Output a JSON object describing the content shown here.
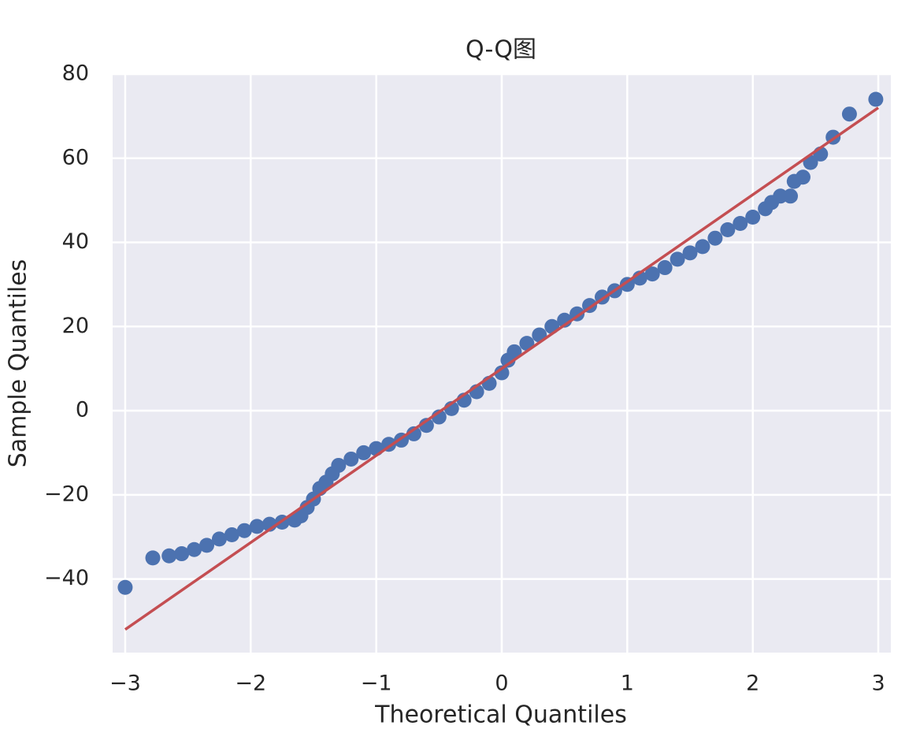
{
  "chart_data": {
    "type": "scatter",
    "title": "Q-Q图",
    "x_label": "Theoretical Quantiles",
    "y_label": "Sample Quantiles",
    "x": [
      -3.0,
      -2.78,
      -2.65,
      -2.55,
      -2.45,
      -2.35,
      -2.25,
      -2.15,
      -2.05,
      -1.95,
      -1.85,
      -1.75,
      -1.65,
      -1.6,
      -1.55,
      -1.5,
      -1.45,
      -1.4,
      -1.35,
      -1.3,
      -1.2,
      -1.1,
      -1.0,
      -0.9,
      -0.8,
      -0.7,
      -0.6,
      -0.5,
      -0.4,
      -0.3,
      -0.2,
      -0.1,
      0.0,
      0.05,
      0.1,
      0.2,
      0.3,
      0.4,
      0.5,
      0.6,
      0.7,
      0.8,
      0.9,
      1.0,
      1.1,
      1.2,
      1.3,
      1.4,
      1.5,
      1.6,
      1.7,
      1.8,
      1.9,
      2.0,
      2.1,
      2.15,
      2.22,
      2.3,
      2.33,
      2.4,
      2.46,
      2.54,
      2.64,
      2.77,
      2.98
    ],
    "values": [
      -42,
      -35,
      -34.5,
      -34,
      -33,
      -32,
      -30.5,
      -29.5,
      -28.5,
      -27.5,
      -27,
      -26.5,
      -26,
      -25,
      -23,
      -21,
      -18.5,
      -17,
      -15,
      -13,
      -11.5,
      -10,
      -9,
      -8,
      -7,
      -5.5,
      -3.5,
      -1.5,
      0.5,
      2.5,
      4.5,
      6.5,
      9,
      12,
      14,
      16,
      18,
      20,
      21.5,
      23,
      25,
      27,
      28.5,
      30,
      31.5,
      32.5,
      34,
      36,
      37.5,
      39,
      41,
      43,
      44.5,
      46,
      48,
      49.5,
      51,
      51,
      54.5,
      55.5,
      59,
      61,
      65,
      70.5,
      74
    ],
    "color": "#4c72b0",
    "line": {
      "x": [
        -3,
        3
      ],
      "values": [
        -52,
        72
      ],
      "color": "#c44e52"
    },
    "xlim": [
      -3.1,
      3.1
    ],
    "ylim": [
      -57.5,
      80
    ],
    "xticks": [
      {
        "value": -3,
        "label": "−3"
      },
      {
        "value": -2,
        "label": "−2"
      },
      {
        "value": -1,
        "label": "−1"
      },
      0,
      1,
      2,
      3
    ],
    "yticks": [
      {
        "value": -40,
        "label": "−40"
      },
      {
        "value": -20,
        "label": "−20"
      },
      0,
      20,
      40,
      60,
      80
    ],
    "grid": true
  }
}
